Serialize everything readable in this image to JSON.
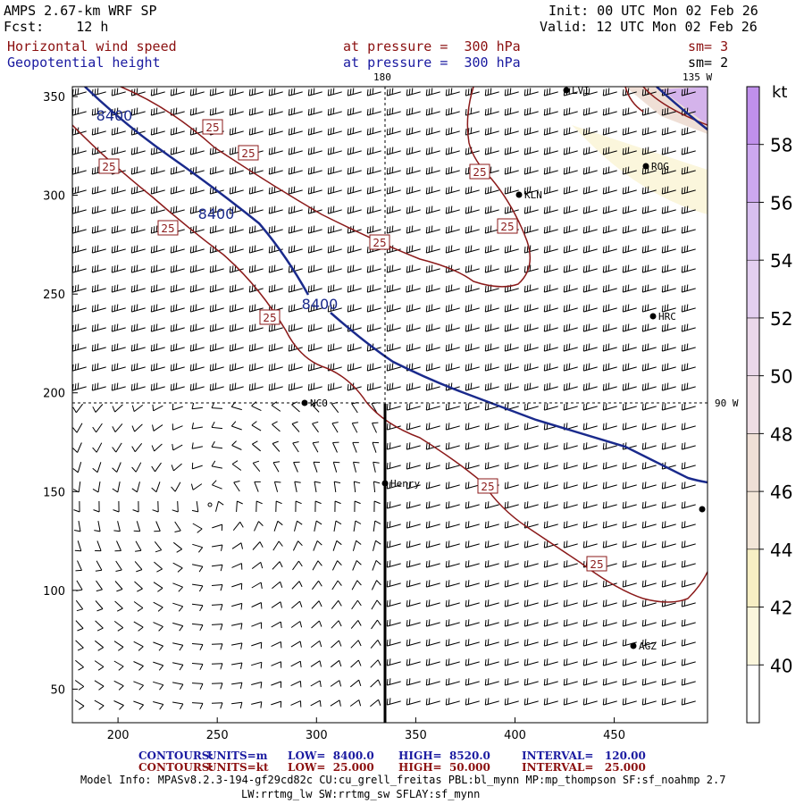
{
  "header": {
    "model_title": "AMPS 2.67-km WRF SP",
    "forecast": "Fcst:    12 h",
    "init": "Init: 00 UTC Mon 02 Feb 26",
    "valid": "Valid: 12 UTC Mon 02 Feb 26",
    "field1_name": "Horizontal wind speed",
    "field1_level": "at pressure =  300 hPa",
    "field1_smooth": "sm= 3",
    "field2_name": "Geopotential height",
    "field2_level": "at pressure =  300 hPa",
    "field2_smooth": "sm= 2"
  },
  "colorbar": {
    "unit": "kt",
    "levels": [
      "40",
      "42",
      "44",
      "46",
      "48",
      "50",
      "52",
      "54",
      "56",
      "58"
    ],
    "colors": [
      "#ffffff",
      "#fbf6dc",
      "#f7efc4",
      "#f3e6d8",
      "#efdfd6",
      "#eedde4",
      "#ebd8ea",
      "#e3cff0",
      "#d8bff0",
      "#cda8f0",
      "#c090ec"
    ]
  },
  "chart_data": {
    "type": "contour",
    "title": "Horizontal wind speed / Geopotential height at 300 hPa",
    "x_ticks": [
      "200",
      "250",
      "300",
      "350",
      "400",
      "450"
    ],
    "y_ticks": [
      "50",
      "100",
      "150",
      "200",
      "250",
      "300",
      "350"
    ],
    "xlim": [
      177,
      497
    ],
    "ylim": [
      33,
      355
    ],
    "longitude_labels": [
      "180",
      "135 W",
      "90 W"
    ],
    "height_contours": {
      "units": "m",
      "low": 8400.0,
      "high": 8520.0,
      "interval": 120.0,
      "labels": [
        "8400",
        "8400",
        "8400"
      ],
      "color": "#1a2a8c"
    },
    "speed_contours": {
      "units": "kt",
      "low": 25.0,
      "high": 50.0,
      "interval": 25.0,
      "labels": [
        "25",
        "25",
        "25",
        "25",
        "25",
        "25",
        "25",
        "25",
        "25"
      ],
      "color": "#8b1a1a"
    },
    "stations": [
      "LVI",
      "ROG",
      "KLN",
      "HRC",
      "NCO",
      "Henry",
      "AGZ"
    ],
    "cross_section_x": 333
  },
  "footer": {
    "contours_label": "CONTOURS:",
    "height_units": "UNITS=m",
    "height_low": "LOW=  8400.0",
    "height_high": "HIGH=  8520.0",
    "height_interval": "INTERVAL=   120.00",
    "speed_units": "UNITS=kt",
    "speed_low": "LOW=  25.000",
    "speed_high": "HIGH=  50.000",
    "speed_interval": "INTERVAL=   25.000",
    "model_info_1": "Model Info: MPASv8.2.3-194-gf29cd82c CU:cu_grell_freitas PBL:bl_mynn MP:mp_thompson SF:sf_noahmp 2.7",
    "model_info_2": "LW:rrtmg_lw SW:rrtmg_sw SFLAY:sf_mynn"
  }
}
